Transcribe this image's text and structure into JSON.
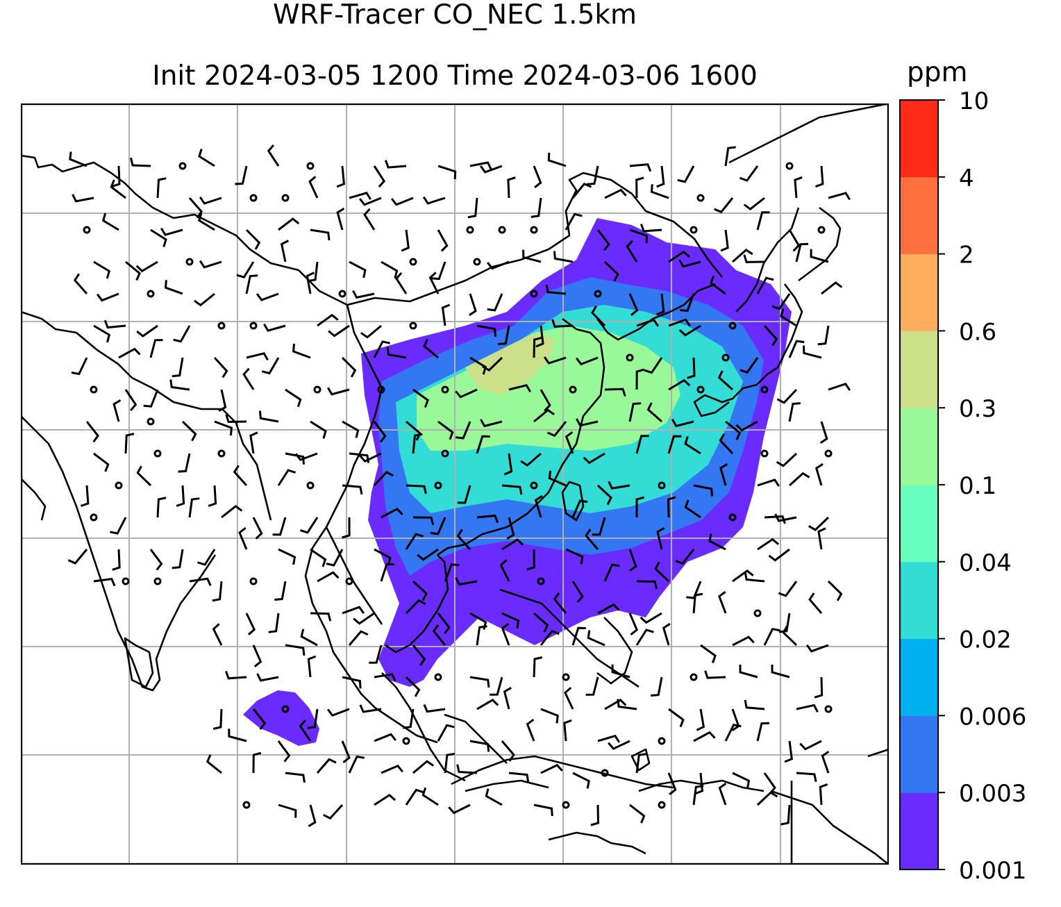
{
  "title_line1": "WRF-Tracer CO_NEC 1.5km",
  "title_line2": "Init 2024-03-05 1200 Time 2024-03-06 1600",
  "colorbar": {
    "unit": "ppm",
    "levels": [
      "0.001",
      "0.003",
      "0.006",
      "0.02",
      "0.04",
      "0.1",
      "0.3",
      "0.6",
      "2",
      "4",
      "10"
    ],
    "colors": [
      "#6a2bff",
      "#3377f2",
      "#00b0ee",
      "#33ddd6",
      "#66ffbe",
      "#99f999",
      "#cce089",
      "#ffae60",
      "#ff7040",
      "#ff2a15"
    ]
  },
  "map": {
    "gridlines": "on",
    "coastline_color": "#000000",
    "gridline_color": "#b0b0b0"
  }
}
